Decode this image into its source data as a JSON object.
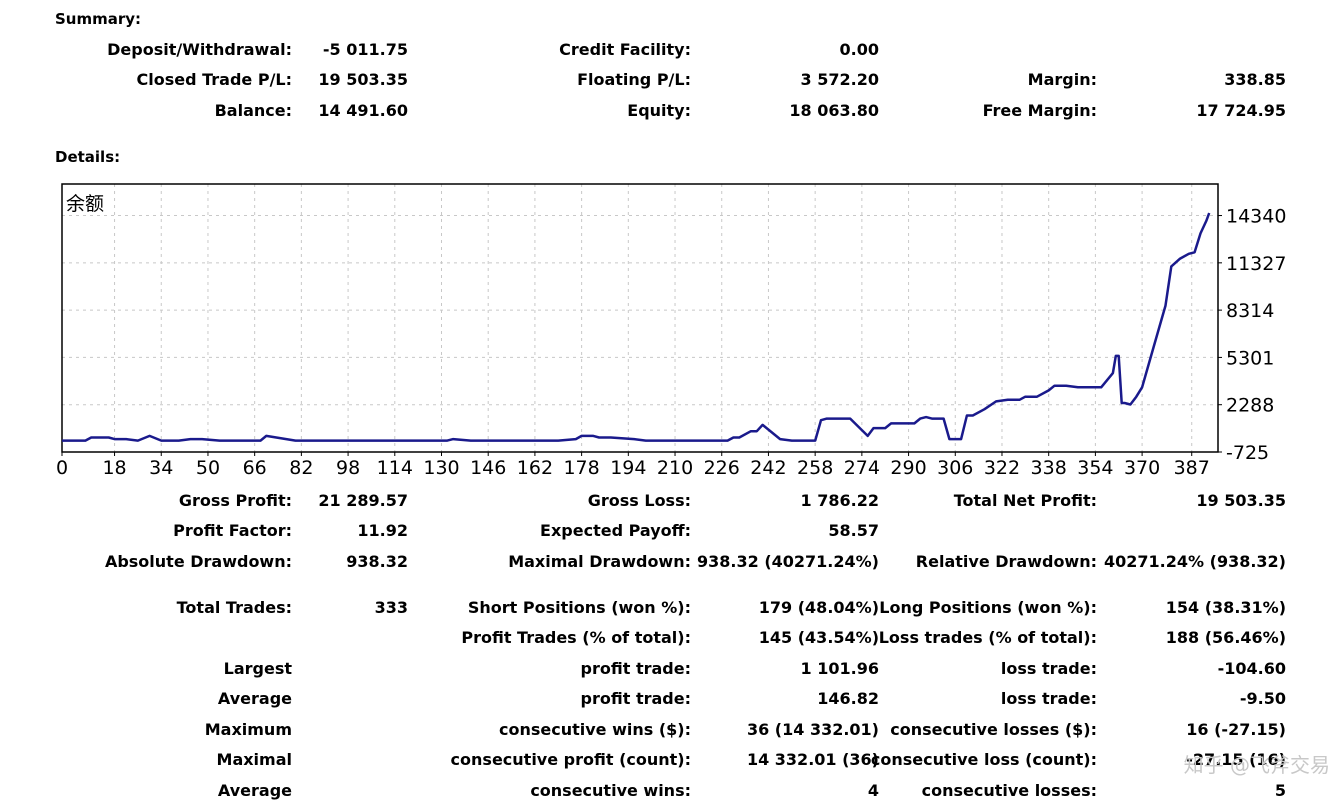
{
  "summary": {
    "title": "Summary:",
    "deposit_label": "Deposit/Withdrawal:",
    "deposit_value": "-5 011.75",
    "credit_label": "Credit Facility:",
    "credit_value": "0.00",
    "closed_label": "Closed Trade P/L:",
    "closed_value": "19 503.35",
    "floating_label": "Floating P/L:",
    "floating_value": "3 572.20",
    "margin_label": "Margin:",
    "margin_value": "338.85",
    "balance_label": "Balance:",
    "balance_value": "14 491.60",
    "equity_label": "Equity:",
    "equity_value": "18 063.80",
    "free_margin_label": "Free Margin:",
    "free_margin_value": "17 724.95"
  },
  "details": {
    "title": "Details:",
    "gross_profit_label": "Gross Profit:",
    "gross_profit_value": "21 289.57",
    "gross_loss_label": "Gross Loss:",
    "gross_loss_value": "1 786.22",
    "total_net_label": "Total Net Profit:",
    "total_net_value": "19 503.35",
    "profit_factor_label": "Profit Factor:",
    "profit_factor_value": "11.92",
    "expected_payoff_label": "Expected Payoff:",
    "expected_payoff_value": "58.57",
    "abs_dd_label": "Absolute Drawdown:",
    "abs_dd_value": "938.32",
    "max_dd_label": "Maximal Drawdown:",
    "max_dd_value": "938.32 (40271.24%)",
    "rel_dd_label": "Relative Drawdown:",
    "rel_dd_value": "40271.24% (938.32)",
    "total_trades_label": "Total Trades:",
    "total_trades_value": "333",
    "short_label": "Short Positions (won %):",
    "short_value": "179 (48.04%)",
    "long_label": "Long Positions (won %):",
    "long_value": "154 (38.31%)",
    "profit_trades_label": "Profit Trades (% of total):",
    "profit_trades_value": "145 (43.54%)",
    "loss_trades_label": "Loss trades (% of total):",
    "loss_trades_value": "188 (56.46%)",
    "largest_label": "Largest",
    "largest_profit_label": "profit trade:",
    "largest_profit_value": "1 101.96",
    "largest_loss_label": "loss trade:",
    "largest_loss_value": "-104.60",
    "average_label": "Average",
    "avg_profit_label": "profit trade:",
    "avg_profit_value": "146.82",
    "avg_loss_label": "loss trade:",
    "avg_loss_value": "-9.50",
    "maximum_label": "Maximum",
    "cons_wins_money_label": "consecutive wins ($):",
    "cons_wins_money_value": "36 (14 332.01)",
    "cons_losses_money_label": "consecutive losses ($):",
    "cons_losses_money_value": "16 (-27.15)",
    "maximal_label": "Maximal",
    "cons_profit_count_label": "consecutive profit (count):",
    "cons_profit_count_value": "14 332.01 (36)",
    "cons_loss_count_label": "consecutive loss (count):",
    "cons_loss_count_value": "-27.15 (16)",
    "average2_label": "Average",
    "avg_cons_wins_label": "consecutive wins:",
    "avg_cons_wins_value": "4",
    "avg_cons_losses_label": "consecutive losses:",
    "avg_cons_losses_value": "5"
  },
  "watermark": "知乎 @飞斧交易",
  "chart_data": {
    "type": "line",
    "title": "余额",
    "line_color": "#1a1a8c",
    "grid": true,
    "x_ticks": [
      0,
      18,
      34,
      50,
      66,
      82,
      98,
      114,
      130,
      146,
      162,
      178,
      194,
      210,
      226,
      242,
      258,
      274,
      290,
      306,
      322,
      338,
      354,
      370,
      387
    ],
    "y_ticks": [
      -725,
      2288,
      5301,
      8314,
      11327,
      14340
    ],
    "xlim": [
      0,
      396
    ],
    "ylim": [
      -725,
      16350
    ],
    "series": [
      {
        "x": [
          0,
          8,
          10,
          16,
          18,
          22,
          26,
          30,
          34,
          40,
          44,
          48,
          54,
          60,
          68,
          70,
          80,
          100,
          120,
          132,
          134,
          140,
          160,
          170,
          176,
          178,
          182,
          184,
          188,
          196,
          200,
          210,
          220,
          228,
          230,
          232,
          236,
          238,
          240,
          246,
          250,
          252,
          258,
          260,
          262,
          264,
          270,
          276,
          278,
          282,
          284,
          286,
          290,
          292,
          294,
          296,
          298,
          302,
          304,
          306,
          308,
          310,
          312,
          316,
          320,
          324,
          328,
          330,
          334,
          338,
          340,
          344,
          348,
          352,
          354,
          356,
          360,
          361,
          362,
          363,
          364,
          366,
          368,
          370,
          374,
          378,
          380,
          383,
          386,
          388,
          390,
          392,
          393
        ],
        "y": [
          0,
          0,
          200,
          200,
          100,
          100,
          0,
          300,
          0,
          0,
          100,
          100,
          0,
          0,
          0,
          300,
          0,
          0,
          0,
          0,
          100,
          0,
          0,
          0,
          100,
          300,
          300,
          200,
          200,
          100,
          0,
          0,
          0,
          0,
          200,
          200,
          600,
          600,
          1000,
          100,
          0,
          0,
          0,
          1300,
          1400,
          1400,
          1400,
          300,
          800,
          800,
          1100,
          1100,
          1100,
          1100,
          1400,
          1500,
          1400,
          1400,
          100,
          100,
          100,
          1600,
          1600,
          2000,
          2500,
          2600,
          2600,
          2800,
          2800,
          3200,
          3500,
          3500,
          3400,
          3400,
          3400,
          3400,
          4300,
          5400,
          5400,
          2400,
          2400,
          2300,
          2800,
          3400,
          6000,
          8600,
          11100,
          11600,
          11900,
          12000,
          13200,
          14000,
          14500
        ]
      }
    ]
  }
}
